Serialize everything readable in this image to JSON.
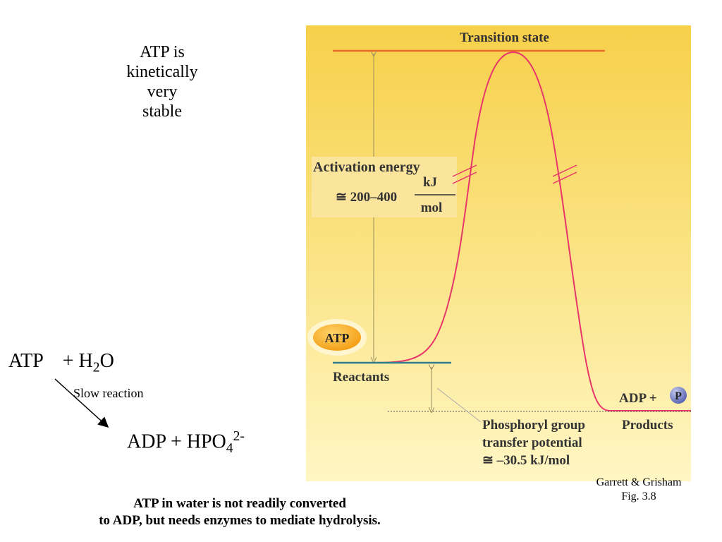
{
  "left_note": {
    "lines": [
      "ATP is",
      "kinetically",
      "very",
      "stable"
    ]
  },
  "reaction": {
    "reactant": "ATP",
    "plus1": "+ H",
    "h2o_sub": "2",
    "h2o_o": "O",
    "arrow_label": "Slow reaction",
    "product": "ADP + HPO",
    "po4_sub": "4",
    "po4_sup": "2-"
  },
  "diagram": {
    "transition_state": "Transition state",
    "activation_energy": "Activation energy",
    "approx_range": "≅ 200–400",
    "unit_num": "kJ",
    "unit_den": "mol",
    "atp_badge": "ATP",
    "reactants": "Reactants",
    "adp_plus": "ADP +",
    "p_badge": "P",
    "products": "Products",
    "phosphoryl_lines": [
      "Phosphoryl group",
      "transfer potential",
      "≅ –30.5 kJ/mol"
    ]
  },
  "citation": {
    "lines": [
      "Garrett & Grisham",
      "Fig. 3.8"
    ]
  },
  "bottom_note": {
    "lines": [
      "ATP in water is not readily converted",
      "to ADP, but needs enzymes to mediate hydrolysis."
    ]
  },
  "colors": {
    "panel_top": "#f7d04a",
    "panel_bottom": "#fff6c4",
    "curve": "#e8366b",
    "transition_line": "#f06a2a",
    "reactant_line": "#2f7f8f",
    "guide": "#9a9060",
    "atp_badge": "#f6a51a",
    "p_badge": "#7d86c8"
  }
}
